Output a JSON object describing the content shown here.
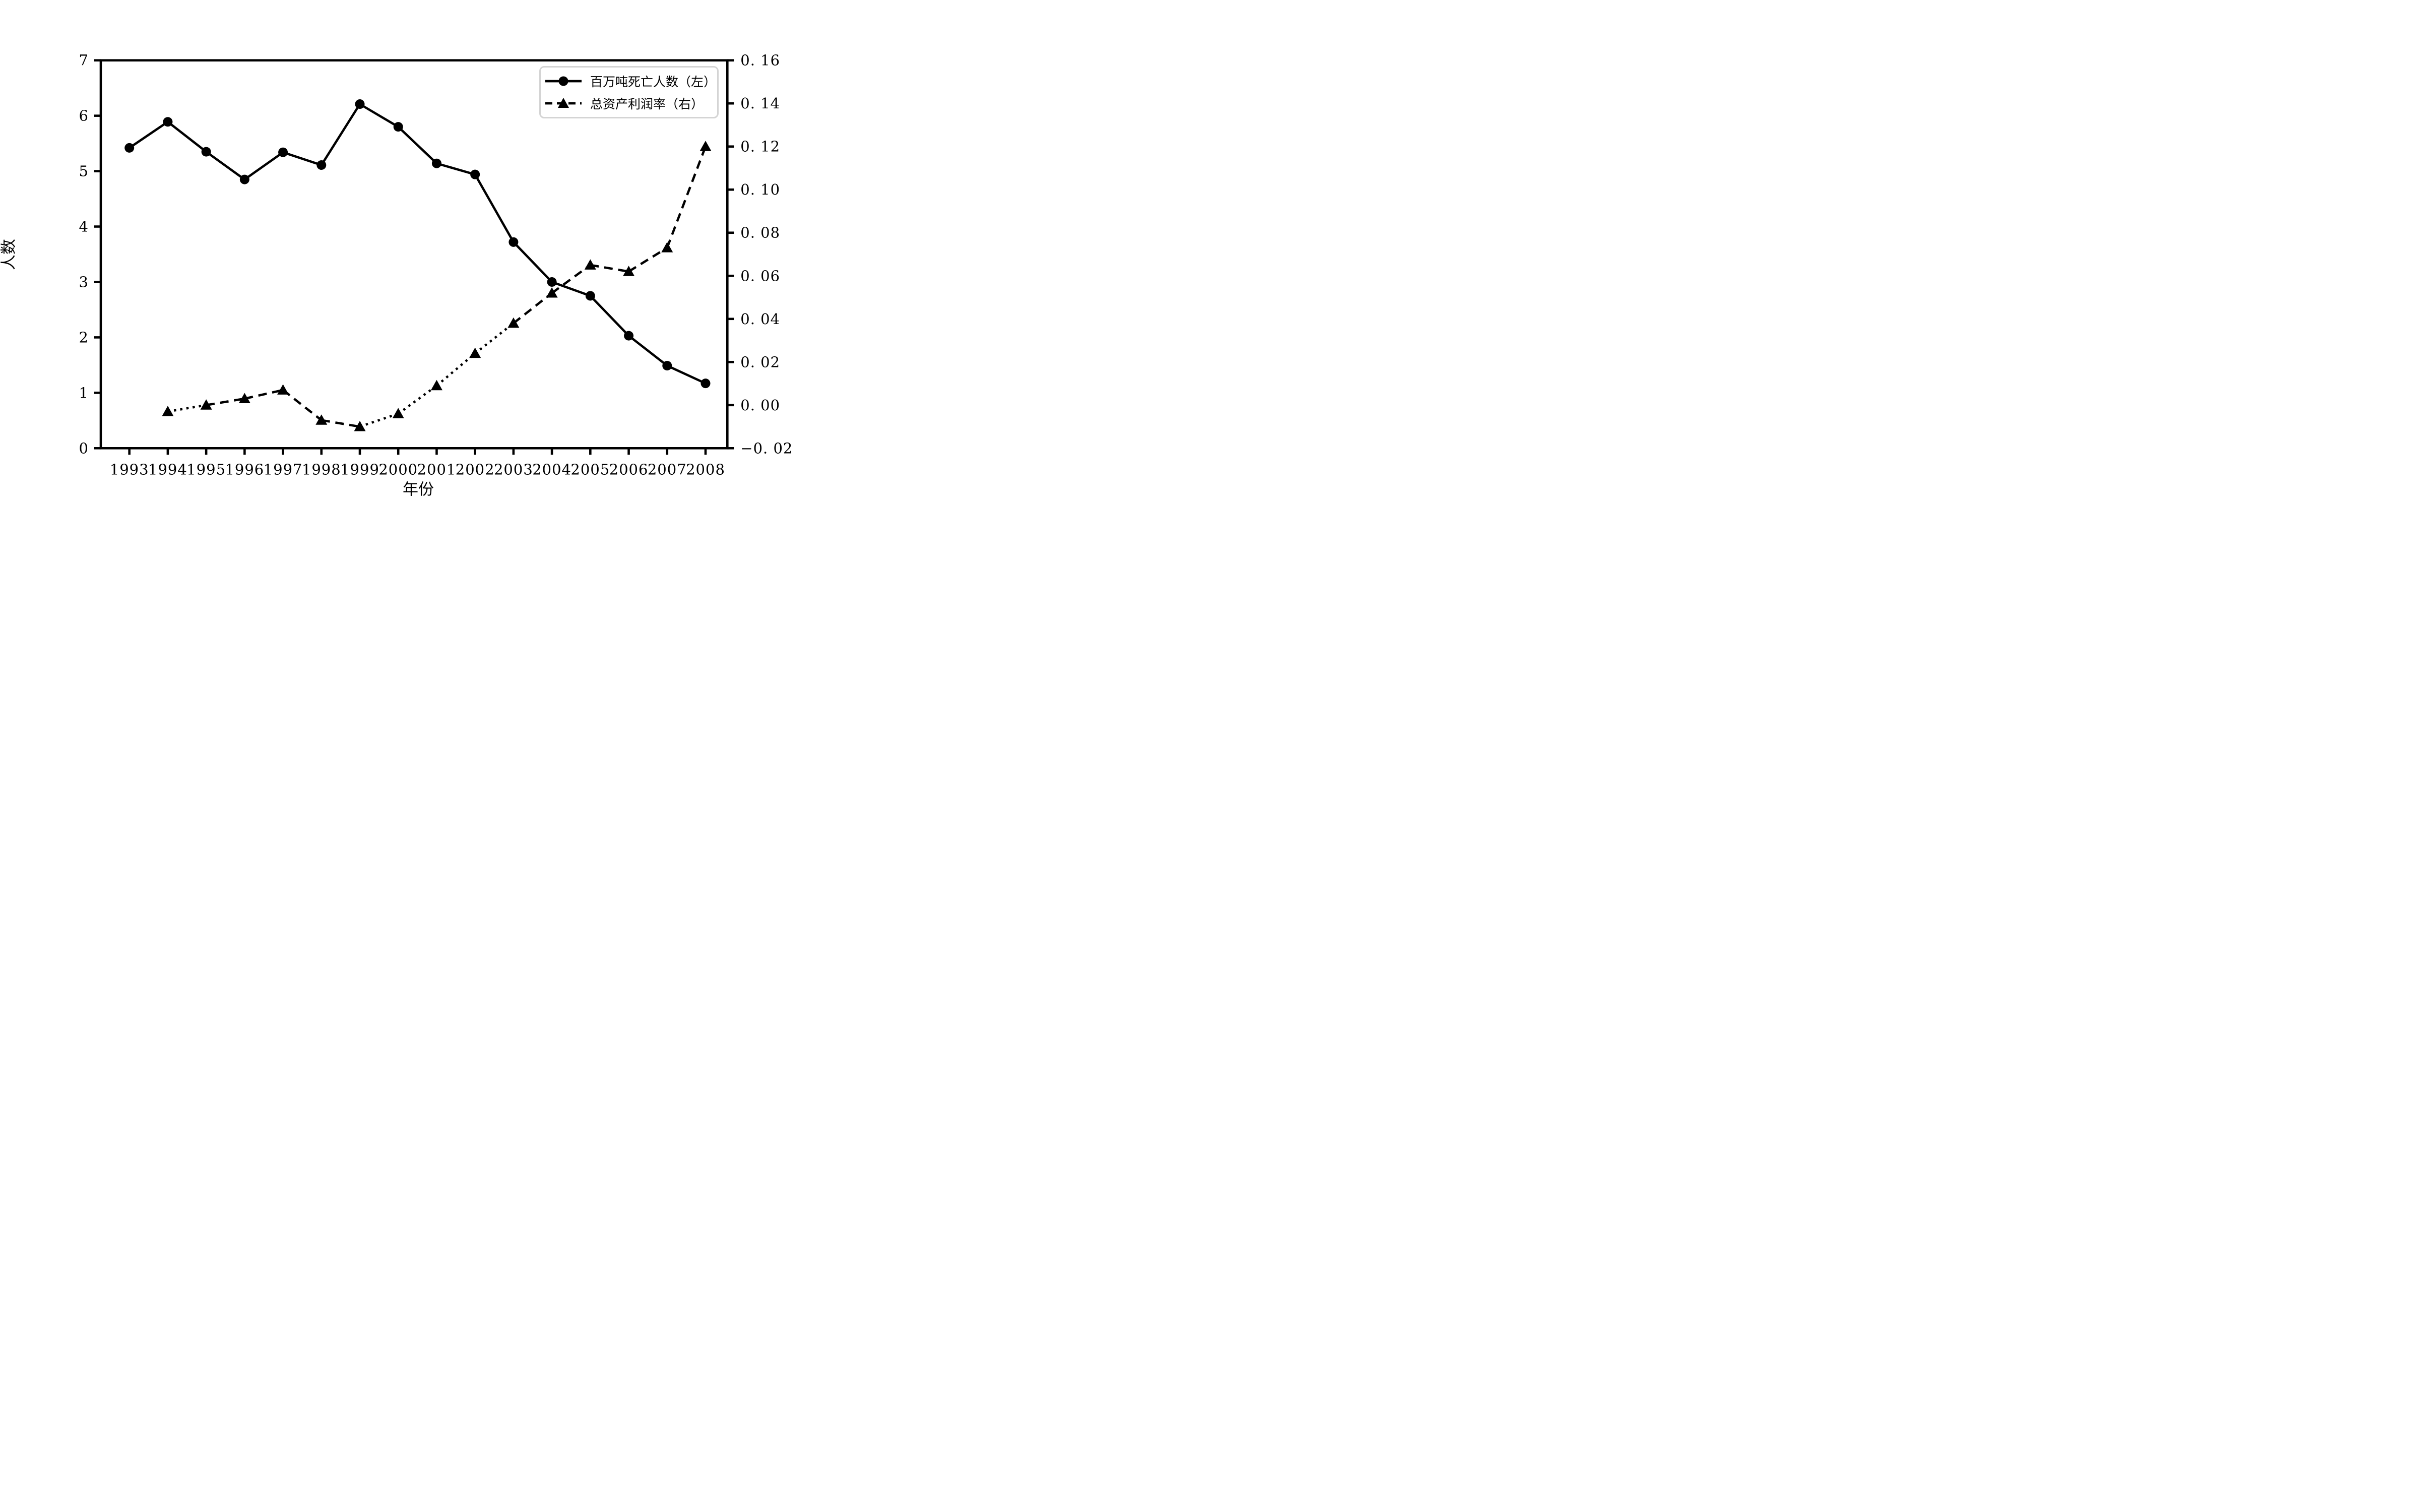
{
  "chart_data": {
    "type": "line",
    "title": "",
    "xlabel": "年份",
    "ylabel_left": "人数",
    "ylabel_right": "",
    "grid": false,
    "background_color": "#ffffff",
    "line_color": "#000000",
    "x": [
      1993,
      1994,
      1995,
      1996,
      1997,
      1998,
      1999,
      2000,
      2001,
      2002,
      2003,
      2004,
      2005,
      2006,
      2007,
      2008
    ],
    "xlim": [
      1992.25,
      2008.57
    ],
    "ylim_left": [
      0,
      7
    ],
    "yticks_left_values": [
      0,
      1,
      2,
      3,
      4,
      5,
      6,
      7
    ],
    "yticks_left_labels": [
      "0",
      "1",
      "2",
      "3",
      "4",
      "5",
      "6",
      "7"
    ],
    "ylim_right": [
      -0.02,
      0.16
    ],
    "yticks_right_values": [
      0.16,
      0.14,
      0.12,
      0.1,
      0.08,
      0.06,
      0.04,
      0.02,
      0.0,
      -0.02
    ],
    "yticks_right_labels": [
      "0. 16",
      "0. 14",
      "0. 12",
      "0. 10",
      "0. 08",
      "0. 06",
      "0. 04",
      "0. 02",
      "0. 00",
      "−0. 02"
    ],
    "legend_position": "upper right",
    "series": [
      {
        "name": "百万吨死亡人数（左）",
        "axis": "left",
        "marker": "circle",
        "linestyle": "solid",
        "values": [
          5.42,
          5.89,
          5.35,
          4.85,
          5.34,
          5.11,
          6.21,
          5.8,
          5.14,
          4.94,
          3.72,
          3.0,
          2.75,
          2.03,
          1.49,
          1.17
        ]
      },
      {
        "name": "总资产利润率（右）",
        "axis": "right",
        "marker": "triangle",
        "linestyle": "dashed",
        "values": [
          null,
          -0.003,
          0.0,
          0.003,
          0.007,
          -0.007,
          -0.01,
          -0.004,
          0.009,
          0.024,
          0.038,
          0.052,
          0.065,
          0.062,
          0.073,
          0.12
        ],
        "segment_styles": [
          null,
          "dotted",
          "dotted",
          "dashed",
          "dashed",
          "dashed",
          "dashed",
          "dotted",
          "dotted",
          "dotted",
          "dotted",
          "dashed",
          "dashed",
          "dashed",
          "dashed"
        ]
      }
    ]
  }
}
